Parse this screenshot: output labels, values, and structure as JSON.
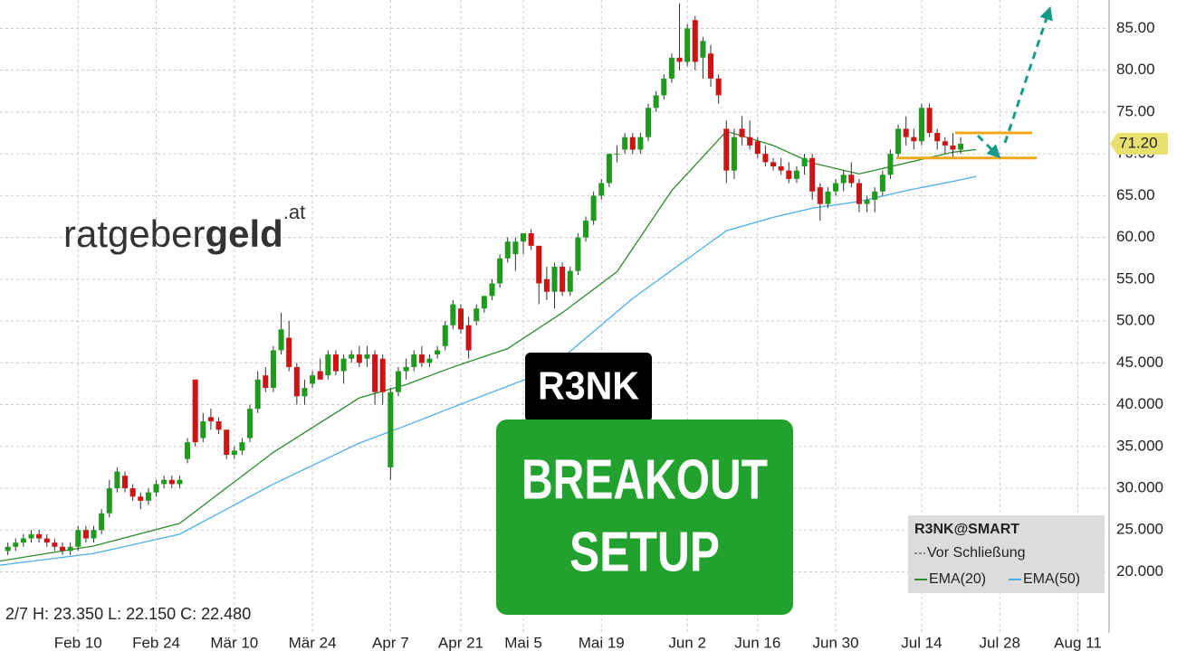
{
  "chart_data": {
    "type": "candlestick",
    "logo": {
      "part1": "ratgeber",
      "part2": "geld",
      "suffix": ".at"
    },
    "badge": "R3NK",
    "banner": [
      "BREAKOUT",
      "SETUP"
    ],
    "info": "2/7 H: 23.350 L: 22.150 C: 22.480",
    "legend": {
      "title": "R3NK@SMART",
      "item": "Vor Schließung"
    },
    "price_marker": {
      "value": 71.2,
      "label": "71.20"
    },
    "levels": [
      72.5,
      69.5
    ],
    "up_color": "#1f9a1f",
    "down_color": "#cc1414",
    "xlim": [
      -5,
      137
    ],
    "ylim": [
      12.7,
      88.4
    ],
    "grid": true,
    "xticks": [
      {
        "value": 5,
        "label": "Feb 10"
      },
      {
        "value": 15,
        "label": "Feb 24"
      },
      {
        "value": 25,
        "label": "Mär 10"
      },
      {
        "value": 35,
        "label": "Mär 24"
      },
      {
        "value": 45,
        "label": "Apr 7"
      },
      {
        "value": 54,
        "label": "Apr 21"
      },
      {
        "value": 62,
        "label": "Mai 5"
      },
      {
        "value": 72,
        "label": "Mai 19"
      },
      {
        "value": 83,
        "label": "Jun 2"
      },
      {
        "value": 92,
        "label": "Jun 16"
      },
      {
        "value": 102,
        "label": "Jun 30"
      },
      {
        "value": 113,
        "label": "Jul 14"
      },
      {
        "value": 123,
        "label": "Jul 28"
      },
      {
        "value": 133,
        "label": "Aug 11"
      }
    ],
    "yticks": [
      {
        "value": 85,
        "label": "85.00"
      },
      {
        "value": 80,
        "label": "80.00"
      },
      {
        "value": 75,
        "label": "75.00"
      },
      {
        "value": 70,
        "label": "70.00"
      },
      {
        "value": 65,
        "label": "65.00"
      },
      {
        "value": 60,
        "label": "60.00"
      },
      {
        "value": 55,
        "label": "55.00"
      },
      {
        "value": 50,
        "label": "50.00"
      },
      {
        "value": 45,
        "label": "45.000"
      },
      {
        "value": 40,
        "label": "40.000"
      },
      {
        "value": 35,
        "label": "35.000"
      },
      {
        "value": 30,
        "label": "30.000"
      },
      {
        "value": 25,
        "label": "25.000"
      },
      {
        "value": 20,
        "label": "20.000"
      }
    ],
    "x": [
      -4,
      -3,
      -2,
      -1,
      0,
      1,
      2,
      3,
      4,
      5,
      6,
      7,
      8,
      9,
      10,
      11,
      12,
      13,
      14,
      15,
      16,
      17,
      18,
      19,
      20,
      21,
      22,
      23,
      24,
      25,
      26,
      27,
      28,
      29,
      30,
      31,
      32,
      33,
      34,
      35,
      36,
      37,
      38,
      39,
      40,
      41,
      42,
      43,
      44,
      45,
      46,
      47,
      48,
      49,
      50,
      51,
      52,
      53,
      54,
      55,
      56,
      57,
      58,
      59,
      60,
      61,
      62,
      63,
      64,
      65,
      66,
      67,
      68,
      69,
      70,
      71,
      72,
      73,
      74,
      75,
      76,
      77,
      78,
      79,
      80,
      81,
      82,
      83,
      84,
      85,
      86,
      87,
      88,
      89,
      90,
      91,
      92,
      93,
      94,
      95,
      96,
      97,
      98,
      99,
      100,
      101,
      102,
      103,
      104,
      105,
      106,
      107,
      108,
      109,
      110,
      111,
      112,
      113,
      114,
      115,
      116,
      117,
      118
    ],
    "ohlc": [
      [
        22.5,
        23.5,
        22,
        23
      ],
      [
        23,
        24,
        22.5,
        23.5
      ],
      [
        23.5,
        24.5,
        23,
        24
      ],
      [
        24,
        25,
        23.5,
        24.5
      ],
      [
        24.5,
        25,
        23.5,
        24
      ],
      [
        24,
        24.5,
        23,
        23.5
      ],
      [
        23.5,
        24,
        22.5,
        23
      ],
      [
        23,
        23.5,
        22,
        22.5
      ],
      [
        22.5,
        23.5,
        22,
        23
      ],
      [
        23,
        25.5,
        22.5,
        25
      ],
      [
        25,
        25.5,
        23.5,
        24
      ],
      [
        24,
        25.5,
        23.5,
        25
      ],
      [
        25,
        27.5,
        24.5,
        27
      ],
      [
        27,
        31,
        26.5,
        30
      ],
      [
        30,
        32.5,
        29.5,
        32
      ],
      [
        31.5,
        32,
        29.5,
        30
      ],
      [
        30,
        30.5,
        28.5,
        29
      ],
      [
        29,
        29.5,
        27.5,
        28.5
      ],
      [
        28.5,
        30,
        28,
        29.5
      ],
      [
        29.5,
        31,
        29,
        30.5
      ],
      [
        30.5,
        31.5,
        30,
        31
      ],
      [
        31,
        31.5,
        30,
        30.5
      ],
      [
        30.5,
        31.5,
        30,
        31
      ],
      [
        33.5,
        36,
        33,
        35.5
      ],
      [
        43,
        43,
        35,
        35.5
      ],
      [
        36,
        39,
        35.5,
        38
      ],
      [
        38.5,
        39.5,
        37,
        38
      ],
      [
        38,
        38.5,
        36.5,
        37
      ],
      [
        37,
        37,
        33.5,
        34
      ],
      [
        34,
        35,
        33.5,
        34.5
      ],
      [
        34.5,
        36,
        34,
        35.5
      ],
      [
        36,
        40,
        35.5,
        39.5
      ],
      [
        39.5,
        44,
        39,
        43
      ],
      [
        43.5,
        44.5,
        41.5,
        42
      ],
      [
        42,
        47,
        41.5,
        46.5
      ],
      [
        46.5,
        51,
        46,
        49
      ],
      [
        48,
        50,
        44,
        44.5
      ],
      [
        44.5,
        45,
        40,
        41
      ],
      [
        41,
        43,
        40,
        42
      ],
      [
        42.5,
        44,
        42,
        43.5
      ],
      [
        44,
        45.5,
        43,
        43
      ],
      [
        43.5,
        46.5,
        43,
        46
      ],
      [
        46,
        46.5,
        43.5,
        44
      ],
      [
        44,
        46,
        42.5,
        45.5
      ],
      [
        45.5,
        46.5,
        45,
        46
      ],
      [
        46,
        47,
        44.5,
        45
      ],
      [
        45.5,
        47,
        44.5,
        46
      ],
      [
        46,
        46.5,
        40,
        41.5
      ],
      [
        45.5,
        46,
        40,
        41.5
      ],
      [
        32.5,
        42,
        31,
        41.5
      ],
      [
        41.5,
        44.5,
        41,
        44
      ],
      [
        44,
        45.5,
        43,
        44.5
      ],
      [
        44.5,
        46.5,
        44,
        46
      ],
      [
        46,
        47,
        44.5,
        45
      ],
      [
        45,
        46,
        44.5,
        45.5
      ],
      [
        46,
        47,
        45.5,
        46.5
      ],
      [
        47,
        50,
        46.5,
        49.5
      ],
      [
        49.5,
        52.5,
        49,
        52
      ],
      [
        51.5,
        52,
        48.5,
        49
      ],
      [
        49.5,
        50.5,
        45.5,
        46.5
      ],
      [
        50,
        52,
        49.5,
        51.5
      ],
      [
        51.5,
        53,
        51,
        53
      ],
      [
        53,
        55,
        52.5,
        54.5
      ],
      [
        54.5,
        58,
        54,
        57.5
      ],
      [
        57.5,
        60,
        57,
        59.5
      ],
      [
        58,
        60,
        56,
        59.5
      ],
      [
        59.5,
        60.5,
        58,
        60.5
      ],
      [
        60.5,
        61,
        58.5,
        59
      ],
      [
        59,
        59,
        52,
        54.5
      ],
      [
        55,
        56.5,
        52.5,
        53.5
      ],
      [
        53.5,
        57,
        51.5,
        56.5
      ],
      [
        56.5,
        57,
        53,
        53.5
      ],
      [
        53.5,
        56.5,
        53,
        56
      ],
      [
        56,
        60.5,
        55.5,
        60
      ],
      [
        60,
        62.5,
        59.5,
        62
      ],
      [
        62,
        65.5,
        61.5,
        65
      ],
      [
        65,
        67,
        64.5,
        66.5
      ],
      [
        66.5,
        70,
        66,
        70
      ],
      [
        70,
        71,
        69,
        70
      ],
      [
        70.5,
        72.5,
        70,
        72
      ],
      [
        72,
        72.5,
        70,
        70.5
      ],
      [
        70.5,
        72.5,
        70,
        72
      ],
      [
        72,
        76,
        71.5,
        75.5
      ],
      [
        75.5,
        77.5,
        75,
        77
      ],
      [
        77,
        79.5,
        76.5,
        79
      ],
      [
        79,
        82,
        78.5,
        81.5
      ],
      [
        81.5,
        88,
        80,
        81
      ],
      [
        81,
        85.5,
        80.5,
        85
      ],
      [
        86,
        86.5,
        80,
        81
      ],
      [
        81.5,
        84,
        79,
        83.5
      ],
      [
        82,
        83,
        78,
        79
      ],
      [
        79,
        79.5,
        76,
        77
      ],
      [
        73,
        74,
        66.5,
        68
      ],
      [
        68,
        73,
        67,
        72
      ],
      [
        73,
        74.5,
        71,
        72
      ],
      [
        72,
        74,
        70.5,
        71
      ],
      [
        71.5,
        72,
        69.5,
        70
      ],
      [
        70,
        71,
        68.5,
        69
      ],
      [
        69,
        69.5,
        68,
        68.5
      ],
      [
        68.5,
        69.5,
        67.5,
        68
      ],
      [
        68,
        69,
        66.5,
        67
      ],
      [
        67,
        68.5,
        66.5,
        68
      ],
      [
        68.5,
        70,
        67.5,
        69.5
      ],
      [
        69.5,
        70,
        64.5,
        65.5
      ],
      [
        66,
        66.5,
        62,
        64
      ],
      [
        64,
        66,
        63.5,
        65.5
      ],
      [
        65.5,
        67,
        65,
        66.5
      ],
      [
        66.5,
        68,
        65.5,
        67.5
      ],
      [
        67.5,
        69,
        66,
        66.5
      ],
      [
        66.5,
        67,
        63,
        64
      ],
      [
        64,
        65,
        63,
        64.5
      ],
      [
        64.5,
        66,
        63,
        65.5
      ],
      [
        65.5,
        68,
        65,
        67.5
      ],
      [
        67.5,
        70.5,
        67,
        70
      ],
      [
        70,
        73.5,
        69.5,
        73
      ],
      [
        73,
        74.5,
        71,
        72
      ],
      [
        72,
        73,
        70.5,
        71.5
      ],
      [
        71.5,
        76,
        71,
        75.5
      ],
      [
        75.5,
        76,
        72,
        72.5
      ],
      [
        72.5,
        73,
        70.5,
        71.5
      ],
      [
        71.5,
        72,
        70,
        71
      ],
      [
        71,
        72.5,
        69.5,
        70.5
      ],
      [
        70.5,
        72,
        70,
        71.2
      ]
    ],
    "series": [
      {
        "name": "EMA(20)",
        "color": "#2e8b2e",
        "x": [
          -5,
          7,
          18,
          30,
          41,
          47,
          53,
          60,
          67,
          74,
          81,
          88,
          94,
          99,
          105,
          111,
          117,
          120
        ],
        "values": [
          21.3,
          23.1,
          25.8,
          34.3,
          40.8,
          42.4,
          44.5,
          46.7,
          51,
          55.9,
          65.6,
          72.7,
          71,
          68.9,
          67.6,
          68.9,
          70.2,
          70.5
        ]
      },
      {
        "name": "EMA(50)",
        "color": "#4aaee8",
        "x": [
          -5,
          7,
          18,
          30,
          41,
          47,
          53,
          65,
          76,
          88,
          94,
          99,
          105,
          111,
          117,
          120
        ],
        "values": [
          20.8,
          22.2,
          24.5,
          30.5,
          35.4,
          37.5,
          39.7,
          44,
          52.7,
          60.8,
          62.4,
          63.5,
          64.3,
          65.6,
          66.7,
          67.3
        ]
      }
    ]
  }
}
